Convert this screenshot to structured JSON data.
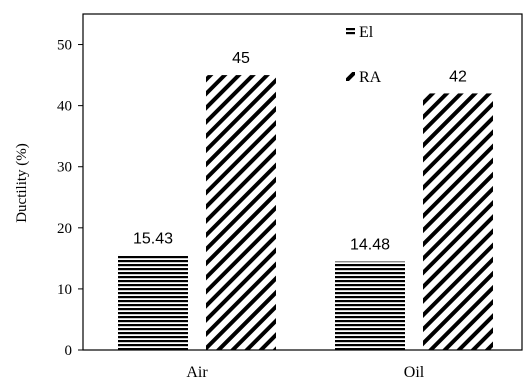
{
  "chart_data": {
    "type": "bar",
    "title": "",
    "xlabel": "",
    "ylabel": "Ductility (%)",
    "categories": [
      "Air",
      "Oil"
    ],
    "series": [
      {
        "name": "El",
        "values": [
          15.43,
          14.48
        ],
        "labels": [
          "15.43",
          "14.48"
        ],
        "pattern": "horizontal-lines",
        "color": "#000000"
      },
      {
        "name": "RA",
        "values": [
          45,
          42
        ],
        "labels": [
          "45",
          "42"
        ],
        "pattern": "diagonal-lines",
        "color": "#000000"
      }
    ],
    "ylim": [
      0,
      55
    ],
    "yticks": [
      0,
      10,
      20,
      30,
      40,
      50
    ],
    "grid": false,
    "legend": "top-right"
  }
}
